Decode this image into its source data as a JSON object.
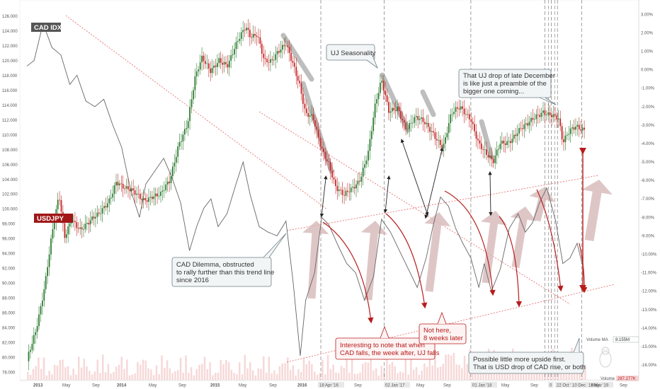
{
  "chart_data": {
    "type": "line",
    "title": "",
    "left_axis": {
      "ticks": [
        "126.000",
        "124.000",
        "122.000",
        "120.000",
        "118.000",
        "116.000",
        "114.000",
        "112.000",
        "110.000",
        "108.000",
        "106.000",
        "104.000",
        "102.000",
        "100.000",
        "98.000",
        "96.000",
        "94.000",
        "92.000",
        "90.000",
        "88.000",
        "86.000",
        "84.000",
        "82.000",
        "80.000",
        "78.000"
      ],
      "range": [
        77,
        128
      ]
    },
    "right_axis": {
      "ticks": [
        "3.00%",
        "2.00%",
        "1.00%",
        "0.00%",
        "-1.00%",
        "-2.00%",
        "-3.00%",
        "-4.00%",
        "-5.00%",
        "-6.00%",
        "-7.00%",
        "-8.00%",
        "-9.00%",
        "-10.00%",
        "-11.00%",
        "-12.00%",
        "-13.00%",
        "-14.00%",
        "-15.00%",
        "-16.00%"
      ],
      "range": [
        -16.8,
        3.7
      ]
    },
    "x_axis": {
      "labels": [
        "2013",
        "May",
        "Sep",
        "2014",
        "May",
        "Sep",
        "2015",
        "May",
        "Sep",
        "2016",
        "18 Apr '16",
        "Sep",
        "02 Jan '17",
        "May",
        "Sep",
        "01 Jan '18",
        "May",
        "Sep",
        "0",
        "22 Oct '18",
        "10 Dec '18",
        "18 Mar '19",
        "May",
        "Sep"
      ]
    },
    "series": [
      {
        "name": "USDJPY",
        "color": "#2e7d32",
        "values": [
          [
            2013.0,
            79.5
          ],
          [
            2013.1,
            84.0
          ],
          [
            2013.2,
            90.0
          ],
          [
            2013.28,
            96.5
          ],
          [
            2013.36,
            101.5
          ],
          [
            2013.42,
            96.0
          ],
          [
            2013.5,
            99.0
          ],
          [
            2013.6,
            97.5
          ],
          [
            2013.7,
            98.0
          ],
          [
            2013.8,
            99.0
          ],
          [
            2013.92,
            101.5
          ],
          [
            2014.0,
            104.0
          ],
          [
            2014.1,
            102.5
          ],
          [
            2014.2,
            102.0
          ],
          [
            2014.3,
            101.5
          ],
          [
            2014.4,
            102.0
          ],
          [
            2014.5,
            101.8
          ],
          [
            2014.6,
            103.5
          ],
          [
            2014.7,
            109.0
          ],
          [
            2014.8,
            112.0
          ],
          [
            2014.88,
            117.5
          ],
          [
            2014.96,
            120.0
          ],
          [
            2015.05,
            118.5
          ],
          [
            2015.15,
            120.5
          ],
          [
            2015.25,
            119.5
          ],
          [
            2015.35,
            122.0
          ],
          [
            2015.45,
            124.5
          ],
          [
            2015.5,
            123.5
          ],
          [
            2015.58,
            124.0
          ],
          [
            2015.66,
            120.0
          ],
          [
            2015.74,
            119.5
          ],
          [
            2015.82,
            121.0
          ],
          [
            2015.9,
            122.5
          ],
          [
            2015.98,
            120.0
          ],
          [
            2016.05,
            117.0
          ],
          [
            2016.12,
            112.5
          ],
          [
            2016.2,
            112.0
          ],
          [
            2016.29,
            108.5
          ],
          [
            2016.38,
            106.5
          ],
          [
            2016.46,
            103.0
          ],
          [
            2016.55,
            101.5
          ],
          [
            2016.64,
            102.5
          ],
          [
            2016.72,
            104.0
          ],
          [
            2016.82,
            108.0
          ],
          [
            2016.9,
            114.0
          ],
          [
            2016.97,
            117.0
          ],
          [
            2017.05,
            113.0
          ],
          [
            2017.15,
            114.0
          ],
          [
            2017.25,
            111.0
          ],
          [
            2017.35,
            112.0
          ],
          [
            2017.45,
            111.5
          ],
          [
            2017.55,
            110.5
          ],
          [
            2017.66,
            108.5
          ],
          [
            2017.75,
            112.5
          ],
          [
            2017.85,
            113.5
          ],
          [
            2017.97,
            112.5
          ],
          [
            2018.06,
            109.0
          ],
          [
            2018.15,
            107.0
          ],
          [
            2018.22,
            106.0
          ],
          [
            2018.3,
            109.0
          ],
          [
            2018.4,
            109.5
          ],
          [
            2018.5,
            110.5
          ],
          [
            2018.6,
            111.0
          ],
          [
            2018.7,
            112.5
          ],
          [
            2018.78,
            113.5
          ],
          [
            2018.86,
            113.0
          ],
          [
            2018.95,
            112.0
          ],
          [
            2019.0,
            108.5
          ],
          [
            2019.08,
            110.5
          ],
          [
            2019.15,
            111.5
          ],
          [
            2019.25,
            111.0
          ]
        ]
      },
      {
        "name": "CAD IDX",
        "color": "#666666",
        "values": [
          [
            2013.0,
            0.2
          ],
          [
            2013.08,
            0.5
          ],
          [
            2013.18,
            2.5
          ],
          [
            2013.28,
            1.2
          ],
          [
            2013.38,
            0.8
          ],
          [
            2013.48,
            -0.8
          ],
          [
            2013.56,
            -0.3
          ],
          [
            2013.66,
            -1.7
          ],
          [
            2013.76,
            -2.0
          ],
          [
            2013.86,
            -1.6
          ],
          [
            2013.96,
            -3.0
          ],
          [
            2014.06,
            -4.2
          ],
          [
            2014.16,
            -6.5
          ],
          [
            2014.26,
            -8.0
          ],
          [
            2014.33,
            -6.2
          ],
          [
            2014.43,
            -5.5
          ],
          [
            2014.53,
            -4.8
          ],
          [
            2014.62,
            -5.8
          ],
          [
            2014.72,
            -7.2
          ],
          [
            2014.82,
            -9.8
          ],
          [
            2014.9,
            -8.5
          ],
          [
            2014.98,
            -7.5
          ],
          [
            2015.06,
            -7.0
          ],
          [
            2015.14,
            -8.5
          ],
          [
            2015.24,
            -7.8
          ],
          [
            2015.34,
            -6.2
          ],
          [
            2015.42,
            -5.0
          ],
          [
            2015.5,
            -6.8
          ],
          [
            2015.6,
            -8.5
          ],
          [
            2015.7,
            -8.8
          ],
          [
            2015.8,
            -9.0
          ],
          [
            2015.9,
            -8.2
          ],
          [
            2015.98,
            -11.5
          ],
          [
            2016.06,
            -15.5
          ],
          [
            2016.12,
            -12.5
          ],
          [
            2016.22,
            -11.0
          ],
          [
            2016.3,
            -8.0
          ],
          [
            2016.38,
            -8.4
          ],
          [
            2016.48,
            -9.5
          ],
          [
            2016.58,
            -10.5
          ],
          [
            2016.68,
            -11.0
          ],
          [
            2016.78,
            -12.5
          ],
          [
            2016.88,
            -11.2
          ],
          [
            2016.97,
            -8.1
          ],
          [
            2017.07,
            -8.8
          ],
          [
            2017.17,
            -9.8
          ],
          [
            2017.27,
            -10.8
          ],
          [
            2017.37,
            -11.8
          ],
          [
            2017.47,
            -10.2
          ],
          [
            2017.55,
            -8.4
          ],
          [
            2017.63,
            -6.9
          ],
          [
            2017.72,
            -7.4
          ],
          [
            2017.8,
            -8.6
          ],
          [
            2017.88,
            -9.4
          ],
          [
            2017.97,
            -10.2
          ],
          [
            2018.06,
            -11.8
          ],
          [
            2018.12,
            -10.5
          ],
          [
            2018.2,
            -12.0
          ],
          [
            2018.3,
            -10.8
          ],
          [
            2018.4,
            -8.6
          ],
          [
            2018.5,
            -7.8
          ],
          [
            2018.58,
            -8.8
          ],
          [
            2018.66,
            -8.3
          ],
          [
            2018.74,
            -7.2
          ],
          [
            2018.82,
            -6.4
          ],
          [
            2018.92,
            -8.2
          ],
          [
            2019.0,
            -10.5
          ],
          [
            2019.08,
            -10.2
          ],
          [
            2019.16,
            -9.4
          ],
          [
            2019.22,
            -10.6
          ]
        ]
      }
    ],
    "labels": {
      "cad_idx": "CAD IDX",
      "usdjpy": "USDJPY",
      "volume_ma": "Volume MA",
      "volume_ma_value": "8.155M",
      "volume": "Volume",
      "volume_value": "287.277K"
    },
    "annotations": {
      "uj_seasonality": "UJ Seasonality",
      "uj_drop": [
        "That UJ drop of late December",
        "is like just a preamble of the",
        "bigger one coming..."
      ],
      "cad_dilemma": [
        "CAD Dilemma, obstructed",
        "to rally further than this trend line",
        "since 2016"
      ],
      "interesting": [
        "Interesting to note that when",
        "CAD falls, the week after, UJ falls"
      ],
      "not_here": [
        "Not here,",
        "8 weeks later"
      ],
      "possible": [
        "Possible little more upside first.",
        "That is USD drop of CAD rise, or both"
      ]
    },
    "colors": {
      "up": "#2e7d32",
      "down": "#c62828",
      "cad_line": "#666666",
      "annotation_red": "#b71c1c",
      "arrow_fill": "#d7b8b8",
      "volume": "#f4c7c7",
      "usdjpy_tag": "#a01818"
    },
    "grid": false
  }
}
